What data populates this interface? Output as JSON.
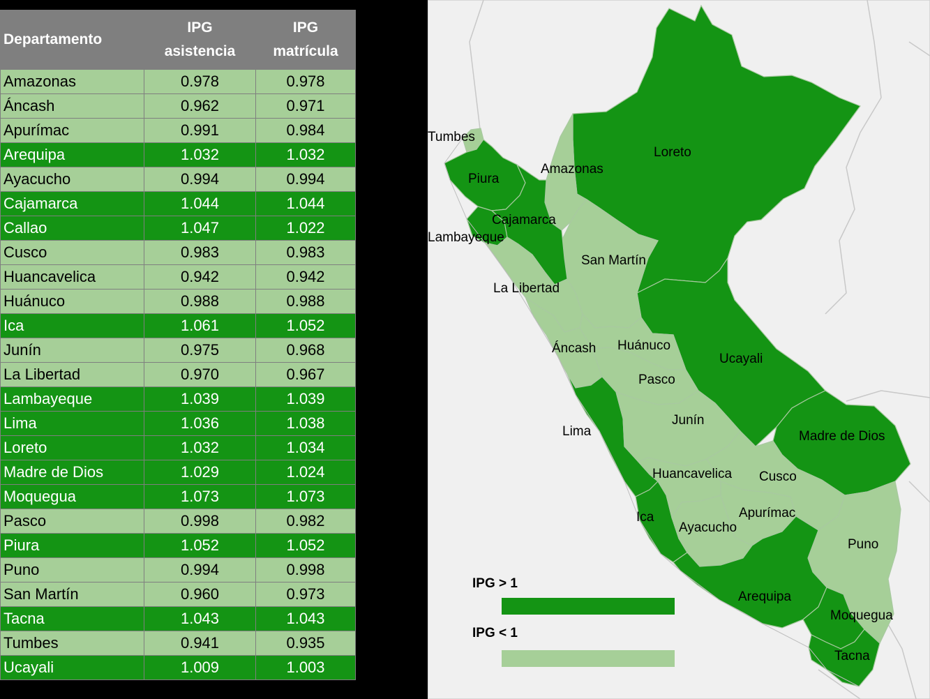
{
  "table": {
    "headers": {
      "dept": "Departamento",
      "col1": [
        "IPG",
        "asistencia"
      ],
      "col2": [
        "IPG",
        "matrícula"
      ]
    },
    "rows": [
      {
        "name": "Amazonas",
        "asistencia": "0.978",
        "matricula": "0.978",
        "group": "lo"
      },
      {
        "name": "Áncash",
        "asistencia": "0.962",
        "matricula": "0.971",
        "group": "lo"
      },
      {
        "name": "Apurímac",
        "asistencia": "0.991",
        "matricula": "0.984",
        "group": "lo"
      },
      {
        "name": "Arequipa",
        "asistencia": "1.032",
        "matricula": "1.032",
        "group": "hi"
      },
      {
        "name": "Ayacucho",
        "asistencia": "0.994",
        "matricula": "0.994",
        "group": "lo"
      },
      {
        "name": "Cajamarca",
        "asistencia": "1.044",
        "matricula": "1.044",
        "group": "hi"
      },
      {
        "name": "Callao",
        "asistencia": "1.047",
        "matricula": "1.022",
        "group": "hi"
      },
      {
        "name": "Cusco",
        "asistencia": "0.983",
        "matricula": "0.983",
        "group": "lo"
      },
      {
        "name": "Huancavelica",
        "asistencia": "0.942",
        "matricula": "0.942",
        "group": "lo"
      },
      {
        "name": "Huánuco",
        "asistencia": "0.988",
        "matricula": "0.988",
        "group": "lo"
      },
      {
        "name": "Ica",
        "asistencia": "1.061",
        "matricula": "1.052",
        "group": "hi"
      },
      {
        "name": "Junín",
        "asistencia": "0.975",
        "matricula": "0.968",
        "group": "lo"
      },
      {
        "name": "La Libertad",
        "asistencia": "0.970",
        "matricula": "0.967",
        "group": "lo"
      },
      {
        "name": "Lambayeque",
        "asistencia": "1.039",
        "matricula": "1.039",
        "group": "hi"
      },
      {
        "name": "Lima",
        "asistencia": "1.036",
        "matricula": "1.038",
        "group": "hi"
      },
      {
        "name": "Loreto",
        "asistencia": "1.032",
        "matricula": "1.034",
        "group": "hi"
      },
      {
        "name": "Madre de Dios",
        "asistencia": "1.029",
        "matricula": "1.024",
        "group": "hi"
      },
      {
        "name": "Moquegua",
        "asistencia": "1.073",
        "matricula": "1.073",
        "group": "hi"
      },
      {
        "name": "Pasco",
        "asistencia": "0.998",
        "matricula": "0.982",
        "group": "lo"
      },
      {
        "name": "Piura",
        "asistencia": "1.052",
        "matricula": "1.052",
        "group": "hi"
      },
      {
        "name": "Puno",
        "asistencia": "0.994",
        "matricula": "0.998",
        "group": "lo"
      },
      {
        "name": "San Martín",
        "asistencia": "0.960",
        "matricula": "0.973",
        "group": "lo"
      },
      {
        "name": "Tacna",
        "asistencia": "1.043",
        "matricula": "1.043",
        "group": "hi"
      },
      {
        "name": "Tumbes",
        "asistencia": "0.941",
        "matricula": "0.935",
        "group": "lo"
      },
      {
        "name": "Ucayali",
        "asistencia": "1.009",
        "matricula": "1.003",
        "group": "hi"
      }
    ]
  },
  "map": {
    "labels": [
      "Tumbes",
      "Piura",
      "Amazonas",
      "Loreto",
      "Cajamarca",
      "Lambayeque",
      "San Martín",
      "La Libertad",
      "Áncash",
      "Huánuco",
      "Ucayali",
      "Pasco",
      "Junín",
      "Lima",
      "Madre de Dios",
      "Huancavelica",
      "Cusco",
      "Ica",
      "Apurímac",
      "Ayacucho",
      "Puno",
      "Arequipa",
      "Moquegua",
      "Tacna"
    ]
  },
  "legend": {
    "above": {
      "label": "IPG > 1",
      "color": "#149414"
    },
    "below": {
      "label": "IPG < 1",
      "color": "#a6cf98"
    }
  },
  "colors": {
    "high": "#149414",
    "low": "#a6cf98",
    "header": "#7f7f7f",
    "neighbor": "#f0f0f0",
    "border": "#d0d0d0"
  }
}
